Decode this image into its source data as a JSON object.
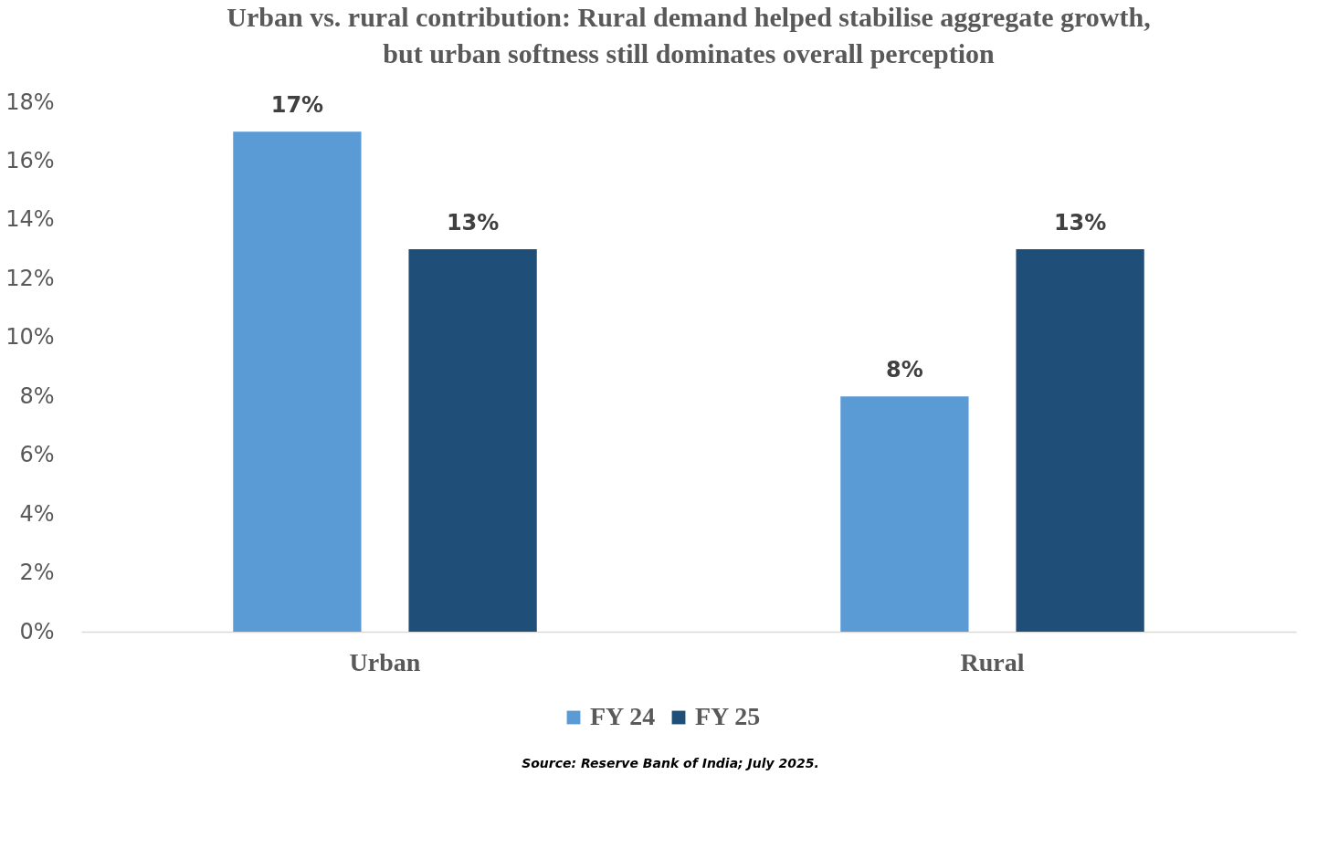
{
  "chart_data": {
    "type": "bar",
    "title": "Urban vs. rural contribution: Rural demand helped stabilise aggregate growth, but urban softness still dominates overall perception",
    "categories": [
      "Urban",
      "Rural"
    ],
    "series": [
      {
        "name": "FY 24",
        "color": "#5b9bd5",
        "values": [
          17,
          8
        ],
        "value_labels": [
          "17%",
          "8%"
        ]
      },
      {
        "name": "FY 25",
        "color": "#1f4e79",
        "values": [
          13,
          13
        ],
        "value_labels": [
          "13%",
          "13%"
        ]
      }
    ],
    "ylim": [
      0,
      18
    ],
    "yticks": [
      {
        "value": 0,
        "label": "0%"
      },
      {
        "value": 2,
        "label": "2%"
      },
      {
        "value": 4,
        "label": "4%"
      },
      {
        "value": 6,
        "label": "6%"
      },
      {
        "value": 8,
        "label": "8%"
      },
      {
        "value": 10,
        "label": "10%"
      },
      {
        "value": 12,
        "label": "12%"
      },
      {
        "value": 14,
        "label": "14%"
      },
      {
        "value": 16,
        "label": "16%"
      },
      {
        "value": 18,
        "label": "18%"
      }
    ],
    "grid": false,
    "legend": "bottom",
    "annotations": [
      "Source: Reserve Bank of India; July 2025."
    ]
  }
}
